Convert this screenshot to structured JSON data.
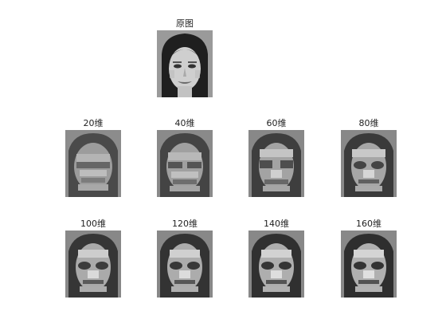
{
  "panels": {
    "original": {
      "title": "原图"
    },
    "r20": {
      "title": "20维"
    },
    "r40": {
      "title": "40维"
    },
    "r60": {
      "title": "60维"
    },
    "r80": {
      "title": "80维"
    },
    "r100": {
      "title": "100维"
    },
    "r120": {
      "title": "120维"
    },
    "r140": {
      "title": "140维"
    },
    "r160": {
      "title": "160维"
    }
  }
}
